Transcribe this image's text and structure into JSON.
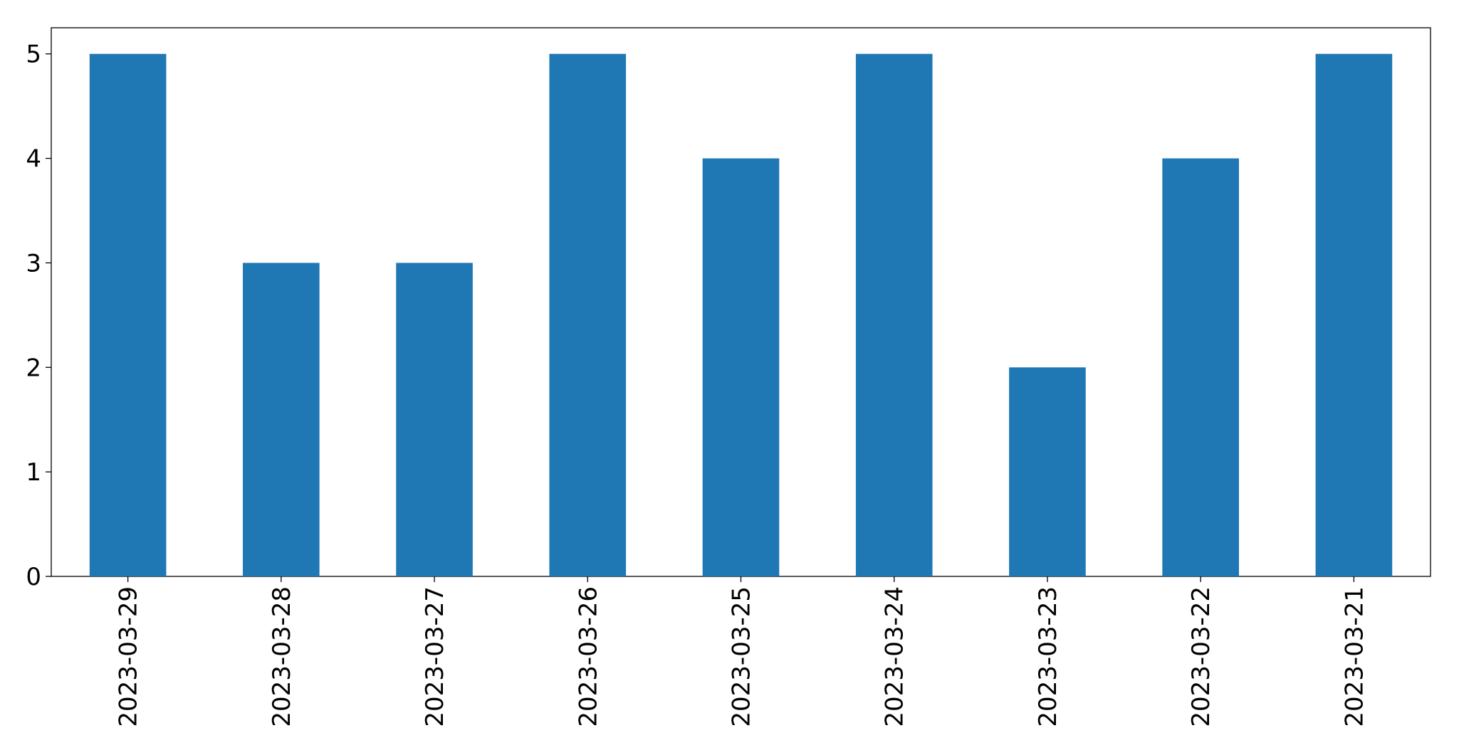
{
  "chart_data": {
    "type": "bar",
    "categories": [
      "2023-03-29",
      "2023-03-28",
      "2023-03-27",
      "2023-03-26",
      "2023-03-25",
      "2023-03-24",
      "2023-03-23",
      "2023-03-22",
      "2023-03-21"
    ],
    "values": [
      5,
      3,
      3,
      5,
      4,
      5,
      2,
      4,
      5
    ],
    "color": "#1f77b4",
    "ylim": [
      0,
      5.25
    ],
    "yticks": [
      0,
      1,
      2,
      3,
      4,
      5
    ],
    "grid": false
  }
}
